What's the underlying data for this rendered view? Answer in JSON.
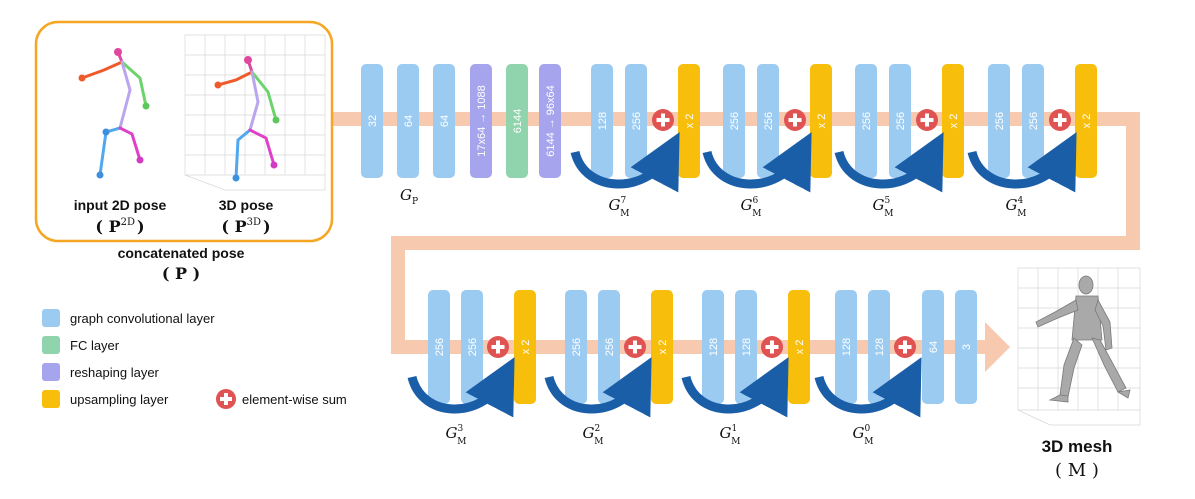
{
  "colors": {
    "graph_conv": "#9ccbf2",
    "fc": "#8fd4ad",
    "reshape": "#a6a4ec",
    "upsample": "#f8be0c",
    "sum": "#e05353",
    "flow": "#f7c9ae",
    "skip_arrow": "#1b5ea8",
    "frame": "#f5a623"
  },
  "pose_panel": {
    "input_label": "input 2D pose",
    "input_symbol_base": "( P",
    "input_symbol_sup": "2D",
    "input_symbol_close": ")",
    "pose3d_label": "3D pose",
    "pose3d_symbol_base": "( P",
    "pose3d_symbol_sup": "3D",
    "pose3d_symbol_close": ")",
    "concat_label": "concatenated pose",
    "concat_symbol": "( P )"
  },
  "row1": {
    "layers": [
      {
        "type": "graph_conv",
        "label": "32"
      },
      {
        "type": "graph_conv",
        "label": "64"
      },
      {
        "type": "graph_conv",
        "label": "64"
      },
      {
        "type": "reshape",
        "label": "17x64 → 1088"
      },
      {
        "type": "fc",
        "label": "6144"
      },
      {
        "type": "reshape",
        "label": "6144 → 96x64"
      }
    ],
    "gp_label": "G",
    "gp_sub": "P",
    "blocks": [
      {
        "c1": "128",
        "c2": "256",
        "up": "x 2",
        "name": "G",
        "sub": "M",
        "sup": "7"
      },
      {
        "c1": "256",
        "c2": "256",
        "up": "x 2",
        "name": "G",
        "sub": "M",
        "sup": "6"
      },
      {
        "c1": "256",
        "c2": "256",
        "up": "x 2",
        "name": "G",
        "sub": "M",
        "sup": "5"
      },
      {
        "c1": "256",
        "c2": "256",
        "up": "x 2",
        "name": "G",
        "sub": "M",
        "sup": "4"
      }
    ]
  },
  "row2": {
    "blocks": [
      {
        "c1": "256",
        "c2": "256",
        "up": "x 2",
        "name": "G",
        "sub": "M",
        "sup": "3"
      },
      {
        "c1": "256",
        "c2": "256",
        "up": "x 2",
        "name": "G",
        "sub": "M",
        "sup": "2"
      },
      {
        "c1": "128",
        "c2": "128",
        "up": "x 2",
        "name": "G",
        "sub": "M",
        "sup": "1"
      },
      {
        "c1": "128",
        "c2": "128",
        "up": "",
        "name": "G",
        "sub": "M",
        "sup": "0"
      }
    ],
    "final_layers": [
      "64",
      "3"
    ]
  },
  "legend": [
    {
      "type": "graph_conv",
      "label": "graph convolutional layer"
    },
    {
      "type": "fc",
      "label": "FC layer"
    },
    {
      "type": "reshape",
      "label": "reshaping layer"
    },
    {
      "type": "upsample",
      "label": "upsampling layer"
    }
  ],
  "legend_sum": "element-wise sum",
  "mesh": {
    "label": "3D mesh",
    "symbol": "( M )"
  }
}
